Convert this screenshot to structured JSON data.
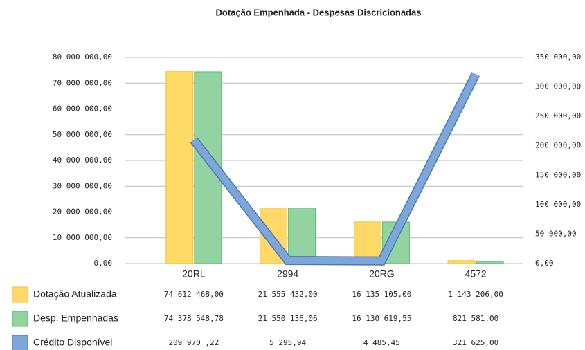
{
  "chart_data": {
    "type": "bar",
    "title": "Dotação Empenhada  - Despesas Discricionadas",
    "categories": [
      "20RL",
      "2994",
      "20RG",
      "4572"
    ],
    "series": [
      {
        "name": "Dotação Atualizada",
        "type": "bar",
        "color": "#ffd966",
        "border": "#f1c232",
        "values": [
          74612468.0,
          21555432.0,
          16135105.0,
          1143206.0
        ],
        "value_labels": [
          "74 612 468,00",
          "21 555 432,00",
          "16 135 105,00",
          "1 143 206,00"
        ]
      },
      {
        "name": "Desp. Empenhadas",
        "type": "bar",
        "color": "#93d3a2",
        "border": "#57bb6a",
        "values": [
          74378548.78,
          21550136.06,
          16130619.55,
          821581.0
        ],
        "value_labels": [
          "74 378 548,78",
          "21 550 136,06",
          "16 130 619,55",
          "821 581,00"
        ]
      },
      {
        "name": "Crédito Disponível",
        "type": "line",
        "axis": "y2",
        "color": "#7da7d9",
        "border": "#4a76b5",
        "values": [
          209970.22,
          5295.94,
          4485.45,
          321625.0
        ],
        "value_labels": [
          "209 970 ,22",
          "5 295,94",
          "4 485,45",
          "321 625,00"
        ]
      }
    ],
    "ylim": [
      0,
      80000000
    ],
    "yticks": [
      {
        "value": 0,
        "label": "0,00"
      },
      {
        "value": 10000000,
        "label": "10 000 000,00"
      },
      {
        "value": 20000000,
        "label": "20 000 000,00"
      },
      {
        "value": 30000000,
        "label": "30 000 000,00"
      },
      {
        "value": 40000000,
        "label": "40 000 000,00"
      },
      {
        "value": 50000000,
        "label": "50 000 000,00"
      },
      {
        "value": 60000000,
        "label": "60 000 000,00"
      },
      {
        "value": 70000000,
        "label": "70 000 000,00"
      },
      {
        "value": 80000000,
        "label": "80 000 000,00"
      }
    ],
    "y2lim": [
      0,
      350000
    ],
    "y2ticks": [
      {
        "value": 0,
        "label": "0,00"
      },
      {
        "value": 50000,
        "label": "50 000,00"
      },
      {
        "value": 100000,
        "label": "100 000,00"
      },
      {
        "value": 150000,
        "label": "150 000,00"
      },
      {
        "value": 200000,
        "label": "200 000,00"
      },
      {
        "value": 250000,
        "label": "250 000,00"
      },
      {
        "value": 300000,
        "label": "300 000,00"
      },
      {
        "value": 350000,
        "label": "350 000,00"
      }
    ],
    "grid": true
  }
}
